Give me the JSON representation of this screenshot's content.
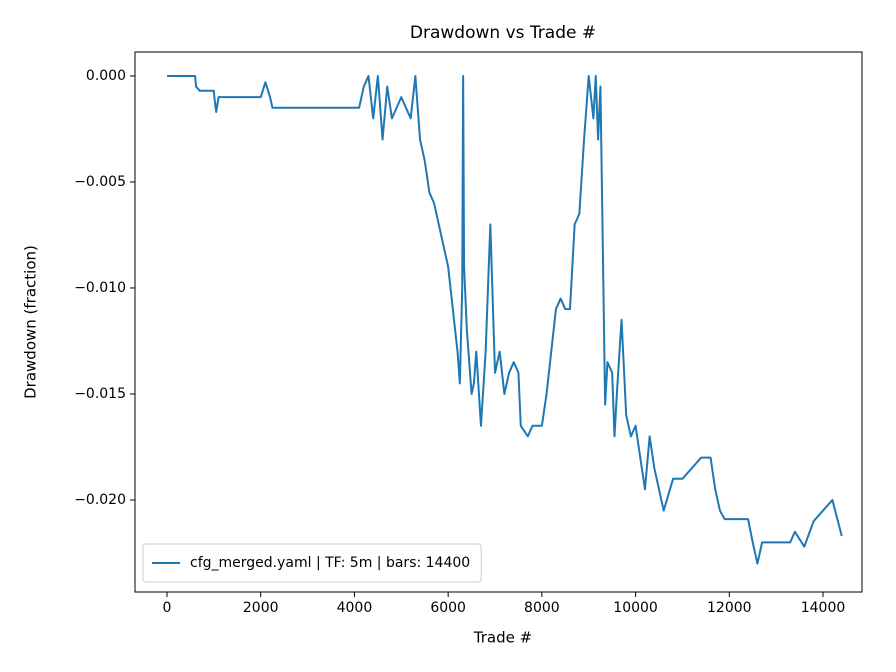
{
  "chart_data": {
    "type": "line",
    "title": "Drawdown vs Trade #",
    "x_label": "Trade #",
    "y_label": "Drawdown (fraction)",
    "x": [
      0,
      600,
      620,
      700,
      1000,
      1010,
      1050,
      1100,
      2000,
      2100,
      2200,
      2250,
      4100,
      4200,
      4300,
      4400,
      4500,
      4600,
      4700,
      4800,
      5000,
      5200,
      5300,
      5400,
      5500,
      5600,
      5700,
      5800,
      5900,
      6000,
      6100,
      6200,
      6250,
      6300,
      6320,
      6340,
      6400,
      6500,
      6550,
      6600,
      6700,
      6800,
      6900,
      7000,
      7100,
      7200,
      7300,
      7400,
      7500,
      7550,
      7700,
      7800,
      8000,
      8100,
      8200,
      8300,
      8400,
      8500,
      8600,
      8700,
      8800,
      8900,
      9000,
      9100,
      9150,
      9200,
      9250,
      9300,
      9350,
      9400,
      9500,
      9550,
      9600,
      9700,
      9800,
      9900,
      10000,
      10100,
      10200,
      10300,
      10400,
      10500,
      10600,
      10800,
      11000,
      11200,
      11400,
      11600,
      11700,
      11800,
      11900,
      12400,
      12500,
      12600,
      12700,
      13300,
      13400,
      13600,
      13800,
      14000,
      14200,
      14400
    ],
    "series": [
      {
        "name": "cfg_merged.yaml | TF: 5m | bars: 14400",
        "color": "#1f77b4",
        "values": [
          0,
          0,
          -0.0005,
          -0.0007,
          -0.0007,
          -0.001,
          -0.0017,
          -0.001,
          -0.001,
          -0.0003,
          -0.001,
          -0.0015,
          -0.0015,
          -0.0005,
          0,
          -0.002,
          0,
          -0.003,
          -0.0005,
          -0.002,
          -0.001,
          -0.002,
          0,
          -0.003,
          -0.004,
          -0.0055,
          -0.006,
          -0.007,
          -0.008,
          -0.009,
          -0.011,
          -0.013,
          -0.0145,
          -0.01,
          0,
          -0.009,
          -0.012,
          -0.015,
          -0.0145,
          -0.013,
          -0.0165,
          -0.013,
          -0.007,
          -0.014,
          -0.013,
          -0.015,
          -0.014,
          -0.0135,
          -0.014,
          -0.0165,
          -0.017,
          -0.0165,
          -0.0165,
          -0.015,
          -0.013,
          -0.011,
          -0.0105,
          -0.011,
          -0.011,
          -0.007,
          -0.0065,
          -0.003,
          0,
          -0.002,
          0,
          -0.003,
          -0.0005,
          -0.008,
          -0.0155,
          -0.0135,
          -0.014,
          -0.017,
          -0.015,
          -0.0115,
          -0.016,
          -0.017,
          -0.0165,
          -0.018,
          -0.0195,
          -0.017,
          -0.0185,
          -0.0195,
          -0.0205,
          -0.019,
          -0.019,
          -0.0185,
          -0.018,
          -0.018,
          -0.0195,
          -0.0205,
          -0.0209,
          -0.0209,
          -0.022,
          -0.023,
          -0.022,
          -0.022,
          -0.0215,
          -0.0222,
          -0.021,
          -0.0205,
          -0.02,
          -0.0217
        ]
      }
    ],
    "xlim": [
      -683,
      14832
    ],
    "ylim": [
      -0.02434,
      0.00113
    ],
    "xticks": [
      0,
      2000,
      4000,
      6000,
      8000,
      10000,
      12000,
      14000
    ],
    "yticks": [
      {
        "value": 0,
        "label": "0.000"
      },
      {
        "value": -0.005,
        "label": "−0.005"
      },
      {
        "value": -0.01,
        "label": "−0.010"
      },
      {
        "value": -0.015,
        "label": "−0.015"
      },
      {
        "value": -0.02,
        "label": "−0.020"
      }
    ],
    "grid": false,
    "legend": "lower left"
  }
}
